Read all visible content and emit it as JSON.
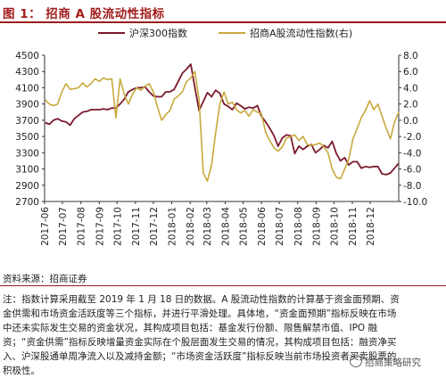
{
  "header": {
    "title": "图 1：  招商 A 股流动性指标"
  },
  "footer": {
    "source": "资料来源：招商证券",
    "note": "注：指数计算采用截至 2019 年 1 月 18 日的数据。A 股流动性指数的计算基于资金面预期、资金供需和市场资金活跃度等三个指标，并进行平滑处理。具体地，“资金面预期”指标反映在市场中还未实际发生交易的资金状况，其构成项目包括：基金发行份额、限售解禁市值、IPO 融资；“资金供需”指标反映增量资金实际在个股层面发生交易的情况，其构成项目包括：融资净买入、沪深股通单周净流入以及减持金额；“市场资金活跃度”指标反映当前市场投资者买卖股票的积极性。",
    "watermark": "招商策略研究"
  },
  "colors": {
    "hs300": "#7b1a2c",
    "liquidity": "#c9a93d",
    "accent": "#a11c1c"
  },
  "chart_data": {
    "type": "line",
    "title": "图 1：  招商 A 股流动性指标",
    "legend_position": "top",
    "grid": false,
    "x_dates_start": "2017-06-02",
    "x_step_days": 7,
    "x_tick_labels": [
      "2017-06",
      "2017-07",
      "2017-08",
      "2017-09",
      "2017-10",
      "2017-11",
      "2017-12",
      "2018-01",
      "2018-02",
      "2018-03",
      "2018-04",
      "2018-05",
      "2018-06",
      "2018-07",
      "2018-08",
      "2018-09",
      "2018-10",
      "2018-11",
      "2018-12"
    ],
    "y_left": {
      "label": "",
      "range": [
        2700,
        4500
      ],
      "ticks": [
        2700,
        2900,
        3100,
        3300,
        3500,
        3700,
        3900,
        4100,
        4300,
        4500
      ]
    },
    "y_right": {
      "label": "",
      "range": [
        -10,
        8
      ],
      "ticks": [
        "8.0",
        "6.0",
        "4.0",
        "2.0",
        "0.0",
        "-2.0",
        "-4.0",
        "-6.0",
        "-8.0",
        "-10.0"
      ]
    },
    "series": [
      {
        "name": "沪深300指数",
        "axis": "left",
        "values": [
          3670,
          3650,
          3700,
          3720,
          3690,
          3680,
          3640,
          3720,
          3760,
          3800,
          3810,
          3830,
          3830,
          3830,
          3840,
          3830,
          3850,
          3850,
          3900,
          3960,
          4050,
          4080,
          4100,
          4100,
          4110,
          4050,
          4000,
          3990,
          3990,
          4050,
          4050,
          4080,
          4180,
          4280,
          4330,
          4390,
          4100,
          3820,
          3930,
          4040,
          3990,
          4070,
          4030,
          3900,
          3870,
          3830,
          3910,
          3880,
          3840,
          3860,
          3850,
          3880,
          3750,
          3680,
          3600,
          3510,
          3380,
          3480,
          3520,
          3510,
          3290,
          3380,
          3340,
          3380,
          3400,
          3300,
          3340,
          3390,
          3360,
          3440,
          3290,
          3200,
          3240,
          3150,
          3190,
          3190,
          3110,
          3130,
          3120,
          3130,
          3130,
          3040,
          3030,
          3050,
          3110,
          3170
        ]
      },
      {
        "name": "招商A股流动性指数(右)",
        "axis": "right",
        "values": [
          2.5,
          2.0,
          1.8,
          2.0,
          3.5,
          4.5,
          3.8,
          3.9,
          4.0,
          4.6,
          4.1,
          4.5,
          5.1,
          4.8,
          5.2,
          5.0,
          5.1,
          0.3,
          5.1,
          3.2,
          2.0,
          3.2,
          4.0,
          3.7,
          4.2,
          4.5,
          3.5,
          1.6,
          0.0,
          0.7,
          1.2,
          2.6,
          3.0,
          3.5,
          4.8,
          5.2,
          6.0,
          2.5,
          -6.5,
          -7.5,
          -5.5,
          -1.5,
          2.0,
          3.5,
          2.0,
          2.2,
          1.3,
          0.9,
          1.2,
          0.5,
          1.3,
          1.0,
          0.8,
          -1.5,
          -2.5,
          -3.4,
          -3.8,
          -3.3,
          -2.2,
          -2.0,
          -1.8,
          -2.5,
          -2.0,
          -3.0,
          -3.1,
          -3.0,
          -2.8,
          -3.3,
          -4.0,
          -6.0,
          -7.0,
          -7.2,
          -6.0,
          -4.8,
          -2.3,
          -1.0,
          0.3,
          1.2,
          2.4,
          1.3,
          2.0,
          0.5,
          -1.0,
          -2.3,
          -0.2,
          1.0
        ]
      }
    ]
  }
}
